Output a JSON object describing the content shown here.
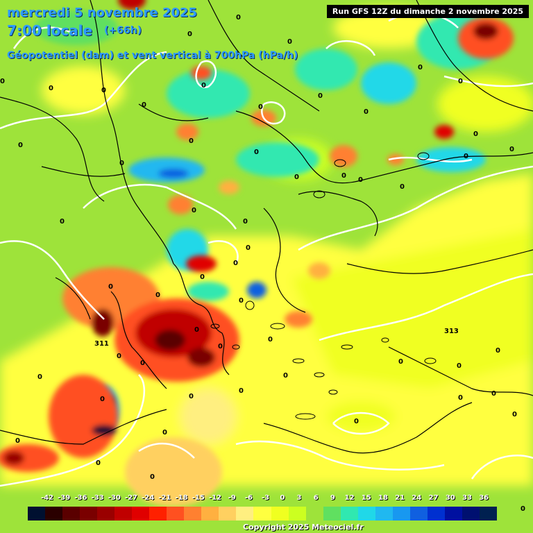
{
  "header": {
    "date": "mercredi 5 novembre 2025",
    "time": "7:00 locale",
    "offset": "(+66h)",
    "parameter": "Géopotentiel (dam) et vent vertical à 700hPa (hPa/h)"
  },
  "run_label": "Run GFS 12Z du dimanche 2 novembre 2025",
  "legend": {
    "ticks": [
      "-42",
      "-39",
      "-36",
      "-33",
      "-30",
      "-27",
      "-24",
      "-21",
      "-18",
      "-15",
      "-12",
      "-9",
      "-6",
      "-3",
      "0",
      "3",
      "6",
      "9",
      "12",
      "15",
      "18",
      "21",
      "24",
      "27",
      "30",
      "33",
      "36"
    ],
    "colors": [
      "#001030",
      "#2a0000",
      "#5a0000",
      "#7a0000",
      "#9a0000",
      "#c00000",
      "#e00000",
      "#ff2000",
      "#ff5020",
      "#ff8030",
      "#ffb040",
      "#ffd060",
      "#ffef80",
      "#ffff40",
      "#f0ff20",
      "#ccff20",
      "#9ee33a",
      "#60e060",
      "#30e8b0",
      "#20d8e8",
      "#20b8f0",
      "#1898f0",
      "#1060e0",
      "#0030d0",
      "#0010a0",
      "#001070",
      "#002050"
    ]
  },
  "contour_labels": [
    "311",
    "313"
  ],
  "zero_label": "0",
  "copyright": "Copyright 2025 Meteociel.fr"
}
